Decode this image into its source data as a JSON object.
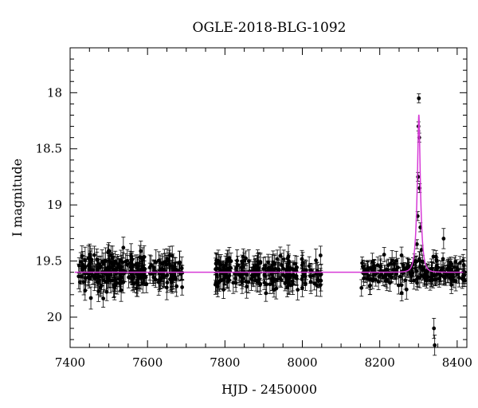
{
  "chart_data": {
    "type": "scatter",
    "title": "OGLE-2018-BLG-1092",
    "xlabel": "HJD - 2450000",
    "ylabel": "I magnitude",
    "xlim": [
      7400,
      8425
    ],
    "ylim": [
      20.27,
      17.6
    ],
    "y_inverted": true,
    "grid": false,
    "x_ticks": [
      7400,
      7600,
      7800,
      8000,
      8200,
      8400
    ],
    "x_tick_labels": [
      "7400",
      "7600",
      "7800",
      "8000",
      "8200",
      "8400"
    ],
    "y_ticks": [
      18,
      18.5,
      19,
      19.5,
      20
    ],
    "y_tick_labels": [
      "18",
      "18.5",
      "19",
      "19.5",
      "20"
    ],
    "colors": {
      "points": "#000000",
      "model": "#d63ad6"
    },
    "model": {
      "baseline": 19.6,
      "t0": 8301,
      "peak": 18.2
    },
    "series": [
      {
        "seasons": [
          {
            "x_range": [
              7422,
              7690
            ],
            "baseline": 19.6,
            "scatter": 0.13,
            "errorbar": 0.09,
            "n_points": 260
          },
          {
            "x_range": [
              7775,
              8050
            ],
            "baseline": 19.6,
            "scatter": 0.12,
            "errorbar": 0.08,
            "n_points": 220
          },
          {
            "x_range": [
              8152,
              8420
            ],
            "baseline": 19.6,
            "scatter": 0.1,
            "errorbar": 0.07,
            "n_points": 200
          }
        ],
        "peak_points": [
          {
            "x": 8301,
            "y": 18.05
          },
          {
            "x": 8300,
            "y": 18.3
          },
          {
            "x": 8302,
            "y": 18.4
          },
          {
            "x": 8299,
            "y": 18.75
          },
          {
            "x": 8303,
            "y": 18.85
          },
          {
            "x": 8298,
            "y": 19.1
          },
          {
            "x": 8305,
            "y": 19.2
          },
          {
            "x": 8296,
            "y": 19.35
          },
          {
            "x": 8308,
            "y": 19.4
          },
          {
            "x": 8293,
            "y": 19.5
          }
        ],
        "outliers": [
          {
            "x": 8340,
            "y": 20.1
          },
          {
            "x": 8342,
            "y": 20.25
          },
          {
            "x": 8365,
            "y": 19.3
          }
        ]
      }
    ]
  }
}
